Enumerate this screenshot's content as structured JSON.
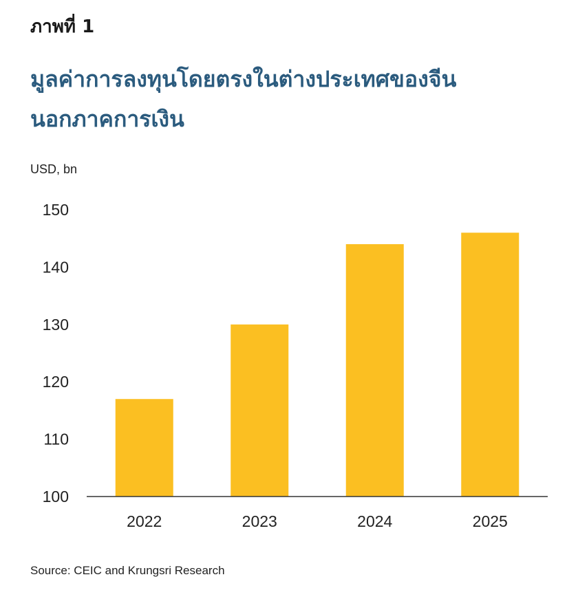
{
  "figure_label": "ภาพที่ 1",
  "title_lines": [
    "มูลค่าการลงทุนโดยตรงในต่างประเทศของจีน",
    "นอกภาคการเงิน"
  ],
  "unit_label": "USD, bn",
  "source": "Source: CEIC and Krungsri Research",
  "colors": {
    "bar": "#FBBF22",
    "title": "#2b5b7e",
    "axis": "#333333"
  },
  "chart_data": {
    "type": "bar",
    "title": "มูลค่าการลงทุนโดยตรงในต่างประเทศของจีนนอกภาคการเงิน",
    "xlabel": "",
    "ylabel": "USD, bn",
    "categories": [
      "2022",
      "2023",
      "2024",
      "2025"
    ],
    "values": [
      117,
      130,
      144,
      146
    ],
    "ylim": [
      100,
      150
    ],
    "yticks": [
      100,
      110,
      120,
      130,
      140,
      150
    ],
    "grid": false,
    "legend": "none"
  }
}
